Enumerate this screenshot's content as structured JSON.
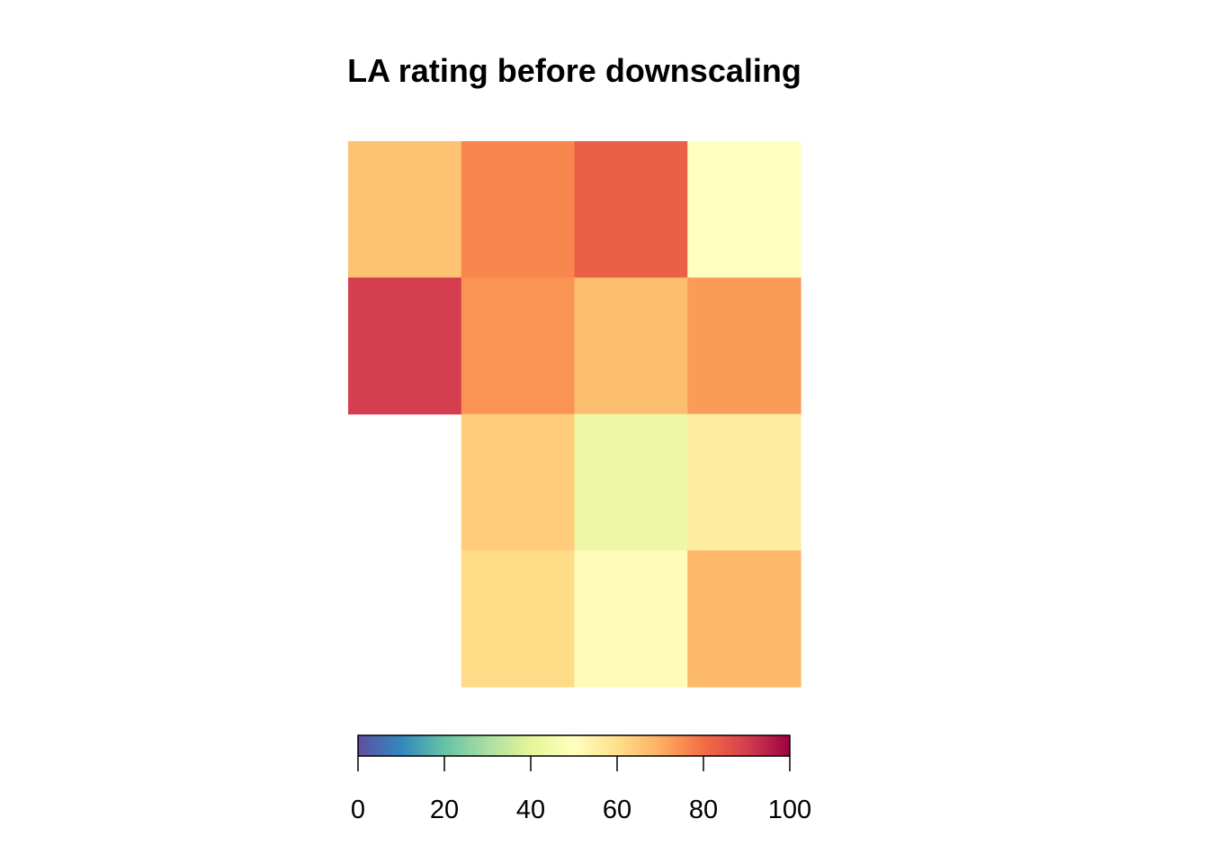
{
  "chart_data": {
    "type": "heatmap",
    "title": "LA rating before downscaling",
    "nrows": 4,
    "ncols": 4,
    "values": [
      [
        66,
        76,
        83,
        50
      ],
      [
        90,
        74,
        67,
        73
      ],
      [
        null,
        64,
        43,
        56
      ],
      [
        null,
        61,
        51,
        68
      ]
    ],
    "colorbar": {
      "min": 0,
      "max": 100,
      "ticks": [
        0,
        20,
        40,
        60,
        80,
        100
      ],
      "tick_labels": [
        "0",
        "20",
        "40",
        "60",
        "80",
        "100"
      ],
      "palette": "Spectral (reversed)",
      "stops": [
        [
          0,
          "#5E4FA2"
        ],
        [
          10,
          "#3288BD"
        ],
        [
          20,
          "#66C2A5"
        ],
        [
          30,
          "#ABDDA4"
        ],
        [
          40,
          "#E6F598"
        ],
        [
          50,
          "#FFFFBF"
        ],
        [
          60,
          "#FEE08B"
        ],
        [
          70,
          "#FDAE61"
        ],
        [
          80,
          "#F46D43"
        ],
        [
          90,
          "#D53E4F"
        ],
        [
          100,
          "#9E0142"
        ]
      ]
    }
  }
}
